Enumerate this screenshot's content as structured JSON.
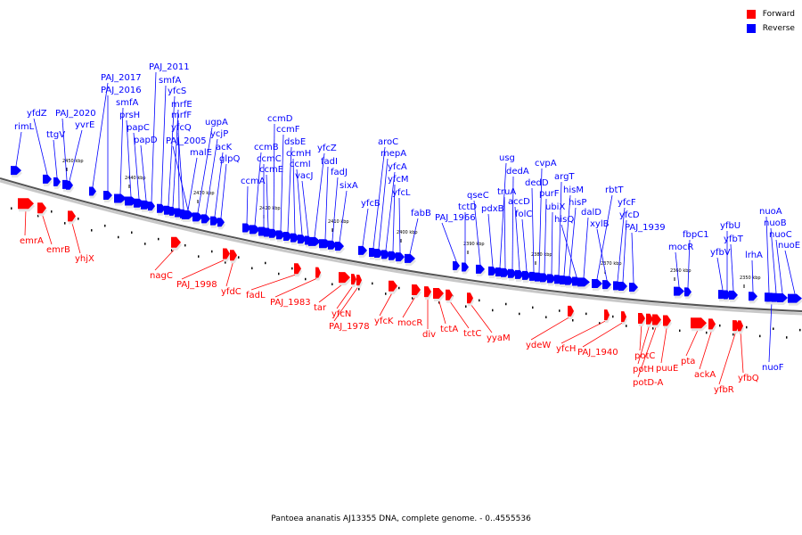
{
  "legend": {
    "forward_label": "Forward",
    "reverse_label": "Reverse",
    "forward_color": "#ff0000",
    "reverse_color": "#0000ff"
  },
  "caption": "Pantoea ananatis AJ13355 DNA, complete genome. - 0..4555536",
  "scale_labels": [
    "2450 kbp",
    "2440 kbp",
    "2430 kbp",
    "2420 kbp",
    "2410 kbp",
    "2400 kbp",
    "2390 kbp",
    "2380 kbp",
    "2370 kbp",
    "2360 kbp",
    "2350 kbp"
  ],
  "forward_genes": [
    "emrA",
    "emrB",
    "yhjX",
    "nagC",
    "PAJ_1998",
    "yfdC",
    "fadL",
    "PAJ_1983",
    "tar",
    "yfcN",
    "PAJ_1978",
    "yfcK",
    "mocR",
    "div",
    "tctA",
    "tctC",
    "yyaM",
    "ydeW",
    "yfcH",
    "PAJ_1940",
    "potC",
    "potH",
    "potD-A",
    "puuE",
    "pta",
    "ackA",
    "yfbR",
    "yfbQ"
  ],
  "reverse_genes": [
    "rimL",
    "yfdZ",
    "ttgV",
    "PAJ_2020",
    "yvrE",
    "PAJ_2017",
    "PAJ_2016",
    "smfA",
    "prsH",
    "papC",
    "papD",
    "PAJ_2011",
    "smfA",
    "yfcS",
    "mrfE",
    "mrfF",
    "yfcQ",
    "PAJ_2005",
    "malE",
    "ugpA",
    "ycjP",
    "acK",
    "glpQ",
    "ccmA",
    "ccmB",
    "ccmC",
    "ccmE",
    "ccmD",
    "ccmF",
    "dsbE",
    "ccmH",
    "ccmI",
    "vacJ",
    "yfcZ",
    "fadI",
    "fadJ",
    "sixA",
    "yfcB",
    "aroC",
    "mepA",
    "yfcA",
    "yfcM",
    "yfcL",
    "fabB",
    "PAJ_1966",
    "tctD",
    "qseC",
    "pdxB",
    "usg",
    "truA",
    "dedA",
    "accD",
    "folC",
    "dedD",
    "cvpA",
    "purF",
    "ubiX",
    "argT",
    "hisM",
    "hisP",
    "hisQ",
    "dalD",
    "rbtT",
    "xylB",
    "yfcF",
    "yfcD",
    "PAJ_1939",
    "mocR",
    "fbpC1",
    "yfbV",
    "yfbU",
    "yfbT",
    "lrhA",
    "nuoA",
    "nuoB",
    "nuoC",
    "nuoE",
    "nuoF"
  ]
}
